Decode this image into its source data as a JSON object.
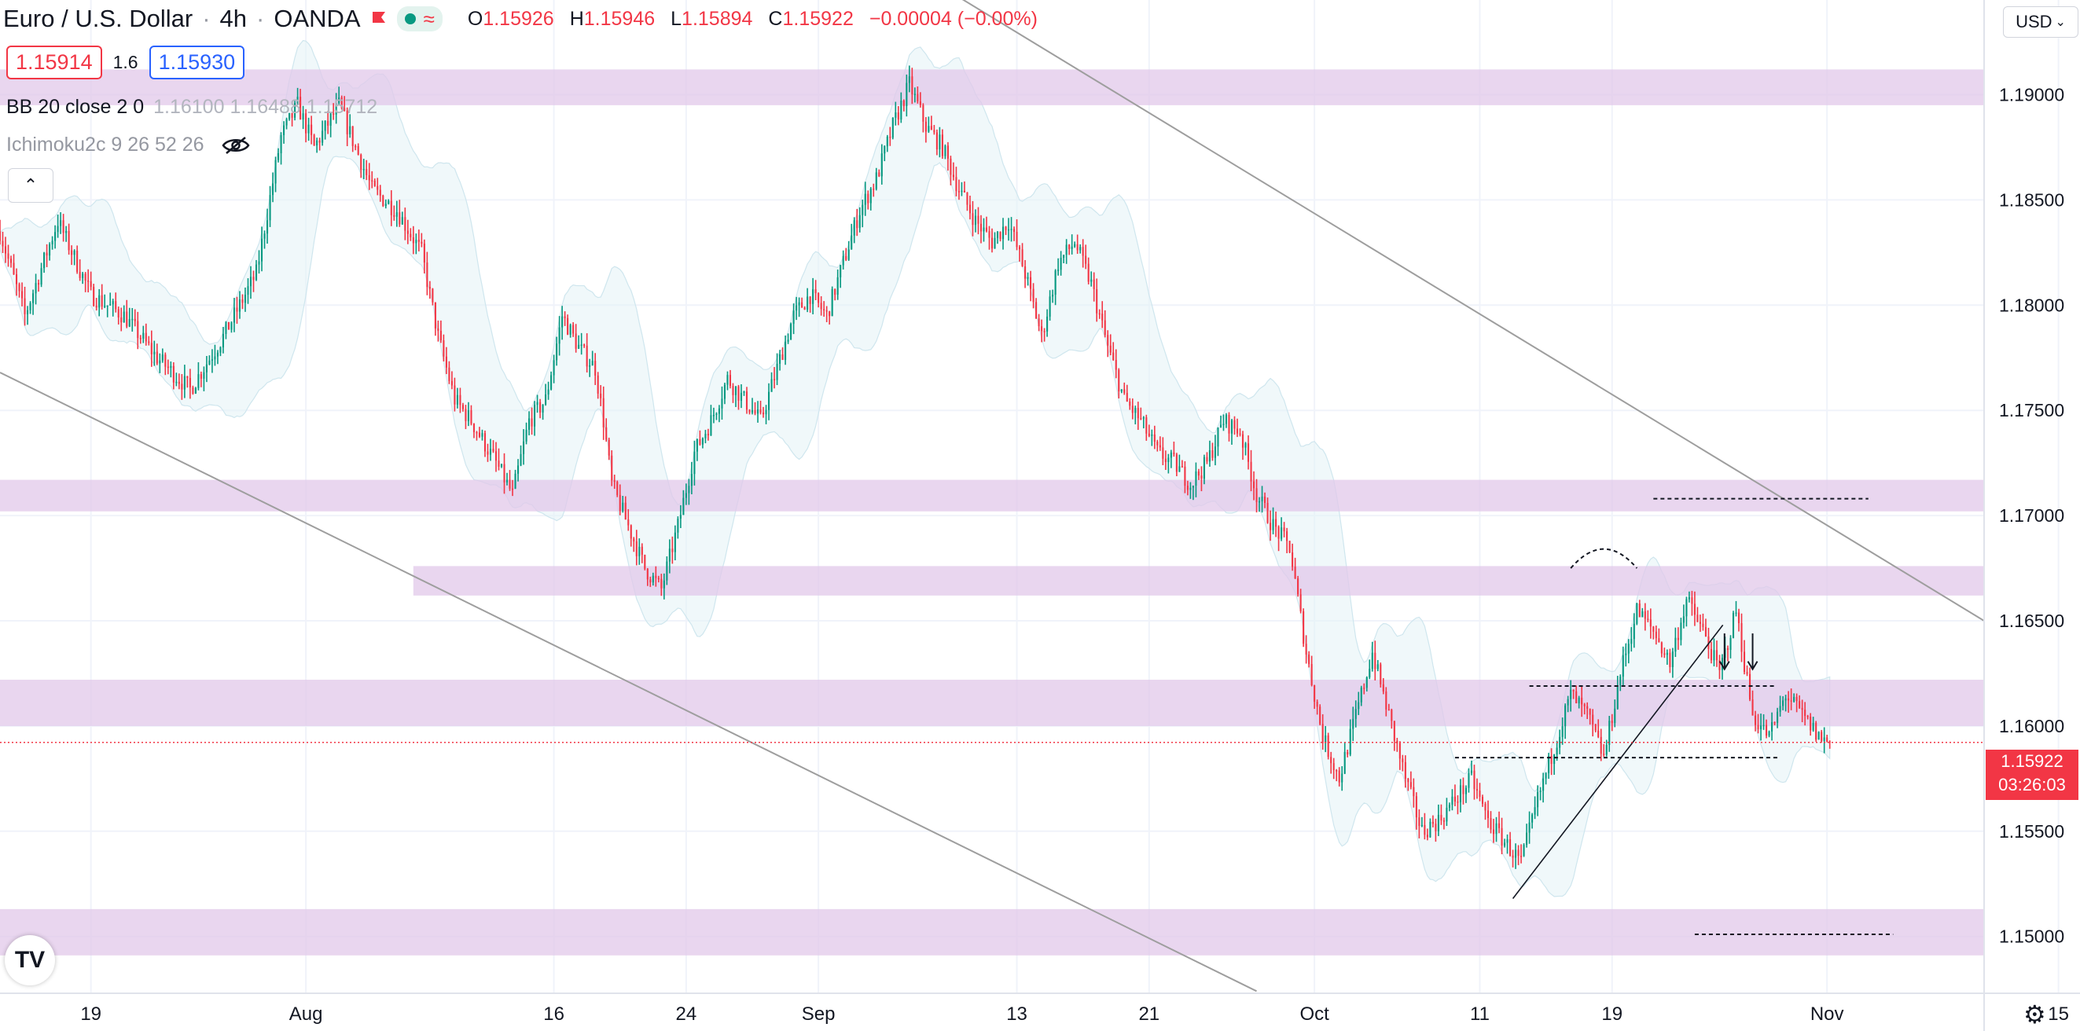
{
  "header": {
    "symbol": "Euro / U.S. Dollar",
    "interval": "4h",
    "exchange": "OANDA",
    "ohlc": {
      "o_label": "O",
      "o": "1.15926",
      "h_label": "H",
      "h": "1.15946",
      "l_label": "L",
      "l": "1.15894",
      "c_label": "C",
      "c": "1.15922",
      "change": "−0.00004 (−0.00%)"
    },
    "sell_price": "1.15914",
    "spread": "1.6",
    "buy_price": "1.15930"
  },
  "indicators": {
    "bb_label": "BB 20 close 2 0",
    "bb_values": "1.16100  1.16488  1.15712",
    "ichimoku_label": "Ichimoku2c 9 26 52 26"
  },
  "toolbar": {
    "currency": "USD",
    "logo_text": "TV"
  },
  "price_axis": {
    "current_price": "1.15922",
    "countdown": "03:26:03"
  },
  "colors": {
    "up": "#089981",
    "down": "#f23645",
    "zone": "#e1c8ea",
    "bb_fill": "#e3f2f6",
    "trendline": "#9e9e9e"
  },
  "chart_data": {
    "type": "candlestick",
    "title": "Euro / U.S. Dollar · 4h · OANDA",
    "y_ticks": [
      1.15,
      1.155,
      1.16,
      1.165,
      1.17,
      1.175,
      1.18,
      1.185,
      1.19
    ],
    "y_tick_labels": [
      "1.15000",
      "1.15500",
      "1.16000",
      "1.16500",
      "1.17000",
      "1.17500",
      "1.18000",
      "1.18500",
      "1.19000"
    ],
    "ylim": [
      1.1473,
      1.1945
    ],
    "x_ticks": [
      {
        "label": "19",
        "day": 0
      },
      {
        "label": "Aug",
        "day": 13
      },
      {
        "label": "16",
        "day": 28
      },
      {
        "label": "24",
        "day": 36
      },
      {
        "label": "Sep",
        "day": 44
      },
      {
        "label": "13",
        "day": 56
      },
      {
        "label": "21",
        "day": 64
      },
      {
        "label": "Oct",
        "day": 74
      },
      {
        "label": "11",
        "day": 84
      },
      {
        "label": "19",
        "day": 92
      },
      {
        "label": "Nov",
        "day": 105
      },
      {
        "label": "15",
        "day": 119
      }
    ],
    "xlim_days": [
      -5.5,
      114.5
    ],
    "current_price": 1.15922,
    "path": [
      [
        -5.5,
        1.1835
      ],
      [
        -4,
        1.1795
      ],
      [
        -2,
        1.184
      ],
      [
        0,
        1.1805
      ],
      [
        2,
        1.1795
      ],
      [
        4,
        1.1775
      ],
      [
        6,
        1.176
      ],
      [
        8,
        1.1785
      ],
      [
        10,
        1.1815
      ],
      [
        11.5,
        1.188
      ],
      [
        12.5,
        1.1895
      ],
      [
        13.5,
        1.1875
      ],
      [
        15,
        1.1895
      ],
      [
        16,
        1.1875
      ],
      [
        17,
        1.1855
      ],
      [
        18.5,
        1.1845
      ],
      [
        20,
        1.1825
      ],
      [
        21,
        1.1785
      ],
      [
        22,
        1.1755
      ],
      [
        23,
        1.1745
      ],
      [
        24.5,
        1.1725
      ],
      [
        25.5,
        1.171
      ],
      [
        26.5,
        1.1745
      ],
      [
        27.5,
        1.1755
      ],
      [
        28.5,
        1.1795
      ],
      [
        29.5,
        1.178
      ],
      [
        30.5,
        1.177
      ],
      [
        31,
        1.1745
      ],
      [
        31.5,
        1.1715
      ],
      [
        32.5,
        1.1695
      ],
      [
        33.5,
        1.1675
      ],
      [
        34.5,
        1.1665
      ],
      [
        35.5,
        1.1695
      ],
      [
        36.5,
        1.173
      ],
      [
        37.5,
        1.1745
      ],
      [
        38.5,
        1.1765
      ],
      [
        39.5,
        1.1755
      ],
      [
        40.5,
        1.1745
      ],
      [
        41.5,
        1.177
      ],
      [
        42.5,
        1.1795
      ],
      [
        43.5,
        1.1805
      ],
      [
        44.5,
        1.1795
      ],
      [
        45.5,
        1.182
      ],
      [
        46.5,
        1.1845
      ],
      [
        47.5,
        1.186
      ],
      [
        48.5,
        1.1885
      ],
      [
        49.5,
        1.1905
      ],
      [
        50.5,
        1.1885
      ],
      [
        51.5,
        1.1875
      ],
      [
        52.5,
        1.1855
      ],
      [
        53.5,
        1.184
      ],
      [
        54.5,
        1.183
      ],
      [
        55.5,
        1.184
      ],
      [
        56.5,
        1.1815
      ],
      [
        57.5,
        1.1785
      ],
      [
        58.5,
        1.182
      ],
      [
        59.5,
        1.183
      ],
      [
        60.5,
        1.181
      ],
      [
        61.5,
        1.178
      ],
      [
        62.5,
        1.1755
      ],
      [
        63.5,
        1.1745
      ],
      [
        64.5,
        1.173
      ],
      [
        65.5,
        1.1725
      ],
      [
        66.5,
        1.1715
      ],
      [
        67.5,
        1.1725
      ],
      [
        68.5,
        1.1745
      ],
      [
        69.5,
        1.174
      ],
      [
        70.5,
        1.171
      ],
      [
        71.5,
        1.1695
      ],
      [
        72.5,
        1.1685
      ],
      [
        73.5,
        1.1635
      ],
      [
        74.5,
        1.1595
      ],
      [
        75.5,
        1.1575
      ],
      [
        76.5,
        1.1605
      ],
      [
        77.5,
        1.1635
      ],
      [
        78.5,
        1.1605
      ],
      [
        79.5,
        1.1575
      ],
      [
        80.5,
        1.155
      ],
      [
        81.5,
        1.1555
      ],
      [
        82.5,
        1.1565
      ],
      [
        83.5,
        1.1575
      ],
      [
        84.5,
        1.1555
      ],
      [
        85.5,
        1.1545
      ],
      [
        86.5,
        1.1535
      ],
      [
        87.5,
        1.1565
      ],
      [
        88.5,
        1.159
      ],
      [
        89.5,
        1.1615
      ],
      [
        90.5,
        1.1605
      ],
      [
        91.5,
        1.1585
      ],
      [
        92.5,
        1.1625
      ],
      [
        93.5,
        1.1655
      ],
      [
        94.5,
        1.1645
      ],
      [
        95.5,
        1.163
      ],
      [
        96.5,
        1.166
      ],
      [
        97.5,
        1.1645
      ],
      [
        98.5,
        1.1625
      ],
      [
        99.5,
        1.1655
      ],
      [
        100.5,
        1.1605
      ],
      [
        101.5,
        1.1595
      ],
      [
        102.5,
        1.1615
      ],
      [
        103.5,
        1.1605
      ],
      [
        104.5,
        1.1595
      ],
      [
        105.2,
        1.1592
      ]
    ],
    "zones": [
      {
        "from_day": -5.5,
        "low": 1.1895,
        "high": 1.1912
      },
      {
        "from_day": -5.5,
        "low": 1.1702,
        "high": 1.1717
      },
      {
        "from_day": 19.5,
        "low": 1.1662,
        "high": 1.1676
      },
      {
        "from_day": -5.5,
        "low": 1.16,
        "high": 1.1622
      },
      {
        "from_day": -5.5,
        "low": 1.1491,
        "high": 1.1513
      }
    ],
    "trendlines": [
      {
        "from": [
          46.5,
          1.1975
        ],
        "to": [
          114.5,
          1.165
        ]
      },
      {
        "from": [
          -5.5,
          1.1768
        ],
        "to": [
          70.5,
          1.1474
        ]
      }
    ],
    "rising_line": {
      "from": [
        86,
        1.1518
      ],
      "to": [
        98.7,
        1.1648
      ]
    },
    "dashed_levels": [
      {
        "from_day": 94.5,
        "to_day": 107.5,
        "price": 1.1708
      },
      {
        "from_day": 87,
        "to_day": 101.8,
        "price": 1.1619
      },
      {
        "from_day": 82.5,
        "to_day": 102,
        "price": 1.1585
      },
      {
        "from_day": 97,
        "to_day": 109,
        "price": 1.1501
      }
    ],
    "arrows": [
      {
        "day": 98.8,
        "from": 1.1644,
        "to": 1.1627
      },
      {
        "day": 100.5,
        "from": 1.1644,
        "to": 1.1627
      }
    ],
    "arc": {
      "from_day": 89.5,
      "to_day": 93.5,
      "price": 1.1675,
      "peak": 1.1682
    }
  }
}
